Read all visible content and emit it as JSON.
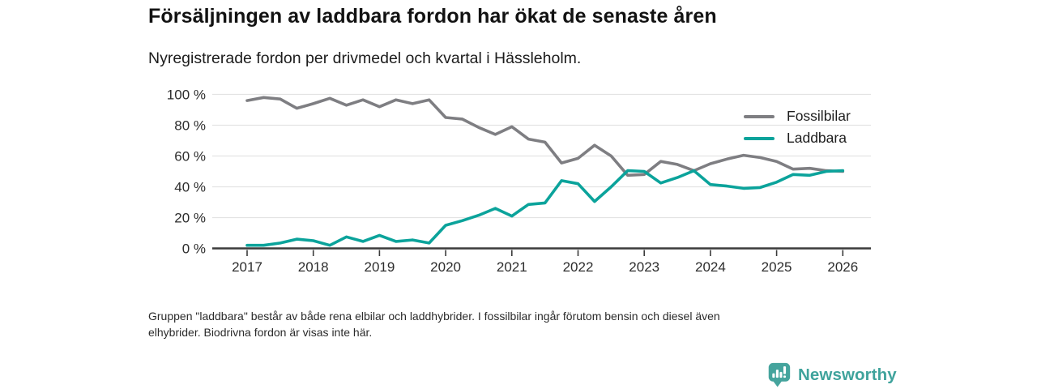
{
  "header": {
    "title": "Försäljningen av laddbara fordon har ökat de senaste åren",
    "subtitle": "Nyregistrerade fordon per drivmedel och kvartal i Hässleholm."
  },
  "chart_data": {
    "type": "line",
    "x_unit": "quarter",
    "x_range": [
      "2017 Q1",
      "2026 Q1"
    ],
    "x_tick_labels": [
      "2017",
      "2018",
      "2019",
      "2020",
      "2021",
      "2022",
      "2023",
      "2024",
      "2025",
      "2026"
    ],
    "y_tick_values": [
      0,
      20,
      40,
      60,
      80,
      100
    ],
    "y_tick_labels": [
      "0 %",
      "20 %",
      "40 %",
      "60 %",
      "80 %",
      "100 %"
    ],
    "ylim": [
      0,
      100
    ],
    "grid": "horizontal",
    "legend_position": "top-right",
    "series": [
      {
        "name": "Fossilbilar",
        "color": "#7e7e82",
        "values": [
          96,
          98,
          97,
          91,
          94,
          97.5,
          93,
          96.5,
          92,
          96.5,
          94,
          96.5,
          85,
          84,
          78.5,
          74,
          79,
          71,
          69,
          55.5,
          58.5,
          67,
          60,
          47.5,
          48,
          56.5,
          54.5,
          50.5,
          55,
          58,
          60.5,
          59,
          56.5,
          51.5,
          52,
          50.5,
          50
        ]
      },
      {
        "name": "Laddbara",
        "color": "#0ba39b",
        "values": [
          2,
          2,
          3.5,
          6,
          5,
          2,
          7.5,
          4.5,
          8.5,
          4.5,
          5.5,
          3.5,
          15,
          18,
          21.5,
          26,
          21,
          28.5,
          29.5,
          44,
          42,
          30.5,
          40,
          50.5,
          50,
          42.5,
          46,
          50.5,
          41.5,
          40.5,
          39,
          39.5,
          43,
          48,
          47.5,
          50,
          50.5
        ]
      }
    ]
  },
  "footnote": {
    "lines": [
      "Gruppen \"laddbara\" består av både rena elbilar och laddhybrider. I fossilbilar ingår förutom bensin och diesel även",
      "elhybrider. Biodrivna fordon är visas inte här."
    ]
  },
  "logo": {
    "text": "Newsworthy",
    "icon_color": "#45a49d",
    "text_color": "#3fa39c"
  }
}
